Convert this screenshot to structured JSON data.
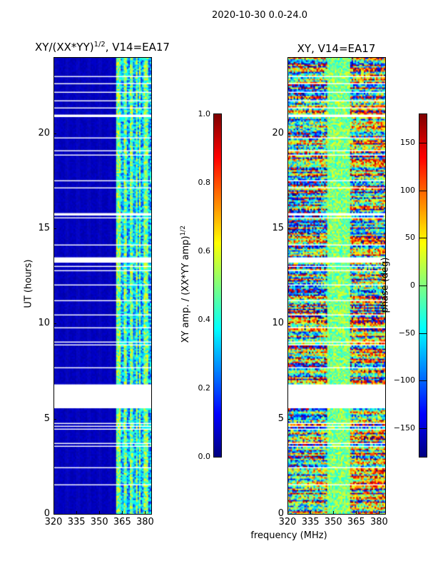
{
  "suptitle": "2020-10-30 0.0-24.0",
  "chart_data": [
    {
      "type": "heatmap",
      "title": "XY/(XX*YY)^1/2, V14=EA17",
      "title_base": "XY/(XX*YY)",
      "title_exp": "1/2",
      "title_tail": ", V14=EA17",
      "xlabel": "frequency (MHz)",
      "ylabel": "UT (hours)",
      "xlim": [
        320,
        384
      ],
      "ylim": [
        0,
        24
      ],
      "xticks": [
        "320",
        "335",
        "350",
        "365",
        "380"
      ],
      "yticks": [
        "0",
        "5",
        "10",
        "15",
        "20"
      ],
      "blank_hours": [
        5.5,
        6.7
      ],
      "colorbar": {
        "label_base": "XY amp. / (XX*YY amp)",
        "label_exp": "1/2",
        "range": [
          0,
          1
        ],
        "ticks": [
          "0.0",
          "0.2",
          "0.4",
          "0.6",
          "0.8",
          "1.0"
        ]
      }
    },
    {
      "type": "heatmap",
      "title": "XY, V14=EA17",
      "xlabel": "frequency (MHz)",
      "xlim": [
        320,
        384
      ],
      "ylim": [
        0,
        24
      ],
      "xticks": [
        "320",
        "335",
        "350",
        "365",
        "380"
      ],
      "yticks": [
        "0",
        "5",
        "10",
        "15",
        "20"
      ],
      "blank_hours": [
        5.5,
        6.7
      ],
      "colorbar": {
        "label": "phase (deg)",
        "range": [
          -180,
          180
        ],
        "ticks": [
          "−150",
          "−100",
          "−50",
          "0",
          "50",
          "100",
          "150"
        ]
      }
    }
  ],
  "xlabel_shared": "frequency (MHz)"
}
